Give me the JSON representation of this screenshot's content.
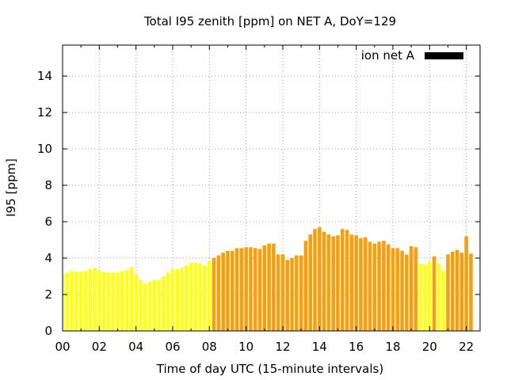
{
  "chart_data": {
    "type": "bar",
    "title": "Total I95 zenith [ppm] on NET A, DoY=129",
    "xlabel": "Time of day UTC (15-minute intervals)",
    "ylabel": "I95 [ppm]",
    "xlim": [
      0,
      22.75
    ],
    "ylim": [
      0,
      15.7
    ],
    "xticks": [
      "00",
      "02",
      "04",
      "06",
      "08",
      "10",
      "12",
      "14",
      "16",
      "18",
      "20",
      "22"
    ],
    "yticks": [
      "0",
      "2",
      "4",
      "6",
      "8",
      "10",
      "12",
      "14"
    ],
    "grid": true,
    "legend": {
      "label": "ion net A",
      "color": "#000000",
      "placement": "top-right"
    },
    "series": [
      {
        "name": "ion net A",
        "interval_hours": 0.25,
        "start_hour": 0,
        "values": [
          3.1,
          3.2,
          3.3,
          3.25,
          3.25,
          3.3,
          3.4,
          3.45,
          3.3,
          3.25,
          3.2,
          3.2,
          3.2,
          3.3,
          3.35,
          3.5,
          3.1,
          2.8,
          2.6,
          2.7,
          2.8,
          2.8,
          3.0,
          3.2,
          3.4,
          3.4,
          3.45,
          3.6,
          3.75,
          3.75,
          3.7,
          3.6,
          3.85,
          4.0,
          4.15,
          4.3,
          4.4,
          4.4,
          4.55,
          4.55,
          4.6,
          4.6,
          4.55,
          4.5,
          4.7,
          4.8,
          4.8,
          4.2,
          4.2,
          3.9,
          4.0,
          4.15,
          4.15,
          4.95,
          5.3,
          5.6,
          5.7,
          5.45,
          5.3,
          5.2,
          5.25,
          5.6,
          5.55,
          5.3,
          5.25,
          5.1,
          5.15,
          4.9,
          4.8,
          4.9,
          4.95,
          4.75,
          4.55,
          4.55,
          4.4,
          4.2,
          4.65,
          4.6,
          3.7,
          3.65,
          3.8,
          4.1,
          3.7,
          3.3,
          4.2,
          4.35,
          4.45,
          4.3,
          5.2,
          4.25
        ]
      }
    ],
    "bar_colors": {
      "low": "#ffff1a",
      "high": "#f5a010",
      "threshold": 3.9
    }
  }
}
